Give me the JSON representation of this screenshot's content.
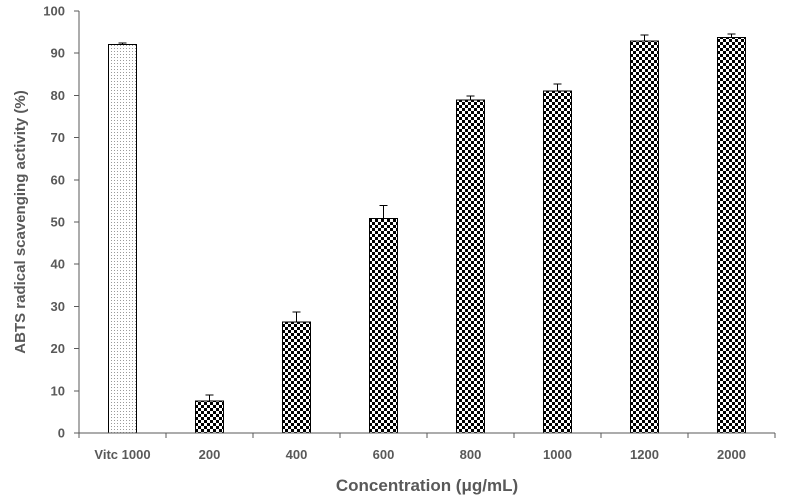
{
  "chart_data": {
    "type": "bar",
    "xlabel": "Concentration (μg/mL)",
    "ylabel": "ABTS radical scavenging activity (%)",
    "categories": [
      "Vitc 1000",
      "200",
      "400",
      "600",
      "800",
      "1000",
      "1200",
      "2000"
    ],
    "values": [
      92.1,
      7.6,
      26.3,
      50.8,
      78.9,
      81.0,
      92.9,
      93.7
    ],
    "errors": [
      0.3,
      1.4,
      2.4,
      3.1,
      1.0,
      1.7,
      1.4,
      0.8
    ],
    "ylim": [
      0,
      100
    ],
    "yticks": [
      0,
      10,
      20,
      30,
      40,
      50,
      60,
      70,
      80,
      90,
      100
    ],
    "grid": false
  },
  "colors": {
    "text": "#595959",
    "axis": "#595959",
    "bar_outline": "#000000",
    "error_bar": "#000000",
    "check": "#000000",
    "dots": "#9a9a9a"
  }
}
